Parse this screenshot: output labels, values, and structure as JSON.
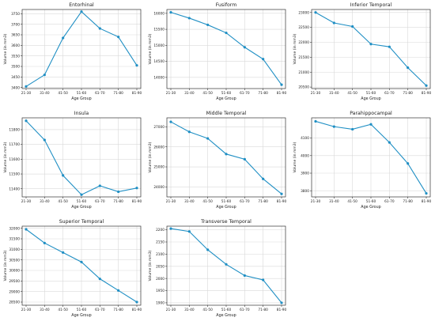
{
  "chart_data": [
    {
      "type": "line",
      "title": "Entorhinal",
      "xlabel": "Age Group",
      "ylabel": "Volume (in mm3)",
      "categories": [
        "21-30",
        "31-40",
        "41-50",
        "51-60",
        "61-70",
        "71-80",
        "81-90"
      ],
      "values": [
        3405,
        3460,
        3635,
        3760,
        3680,
        3640,
        3505
      ],
      "ylim": [
        3395,
        3770
      ],
      "yticks": [
        3400,
        3450,
        3500,
        3550,
        3600,
        3650,
        3700,
        3750
      ],
      "grid": true,
      "color": "#1f8fc4"
    },
    {
      "type": "line",
      "title": "Fusiform",
      "xlabel": "Age Group",
      "ylabel": "Volume (in mm3)",
      "categories": [
        "21-30",
        "31-40",
        "41-50",
        "51-60",
        "61-70",
        "71-80",
        "81-90"
      ],
      "values": [
        16030,
        15850,
        15640,
        15390,
        14940,
        14570,
        13770
      ],
      "ylim": [
        13650,
        16120
      ],
      "yticks": [
        14000,
        14500,
        15000,
        15500,
        16000
      ],
      "grid": true,
      "color": "#1f8fc4"
    },
    {
      "type": "line",
      "title": "Inferior Temporal",
      "xlabel": "Age Group",
      "ylabel": "Volume (in mm3)",
      "categories": [
        "21-30",
        "31-40",
        "41-50",
        "51-60",
        "61-70",
        "71-80",
        "81-90"
      ],
      "values": [
        23000,
        22650,
        22530,
        21940,
        21850,
        21150,
        20550
      ],
      "ylim": [
        20450,
        23100
      ],
      "yticks": [
        20500,
        21000,
        21500,
        22000,
        22500,
        23000
      ],
      "grid": true,
      "color": "#1f8fc4"
    },
    {
      "type": "line",
      "title": "Insula",
      "xlabel": "Age Group",
      "ylabel": "Volume (in mm3)",
      "categories": [
        "21-30",
        "31-40",
        "41-50",
        "51-60",
        "61-70",
        "71-80",
        "81-90"
      ],
      "values": [
        11860,
        11730,
        11490,
        11360,
        11420,
        11380,
        11405
      ],
      "ylim": [
        11345,
        11880
      ],
      "yticks": [
        11400,
        11500,
        11600,
        11700,
        11800
      ],
      "grid": true,
      "color": "#1f8fc4"
    },
    {
      "type": "line",
      "title": "Middle Temporal",
      "xlabel": "Age Group",
      "ylabel": "Volume (in mm3)",
      "categories": [
        "21-30",
        "31-40",
        "41-50",
        "51-60",
        "61-70",
        "71-80",
        "81-90"
      ],
      "values": [
        27250,
        26750,
        26420,
        25640,
        25380,
        24400,
        23650
      ],
      "ylim": [
        23500,
        27450
      ],
      "yticks": [
        24000,
        25000,
        26000,
        27000
      ],
      "grid": true,
      "color": "#1f8fc4"
    },
    {
      "type": "line",
      "title": "Parahippocampal",
      "xlabel": "Age Group",
      "ylabel": "Volume (in mm3)",
      "categories": [
        "21-30",
        "31-40",
        "41-50",
        "51-60",
        "61-70",
        "71-80",
        "81-90"
      ],
      "values": [
        4195,
        4165,
        4150,
        4178,
        4075,
        3955,
        3785
      ],
      "ylim": [
        3765,
        4215
      ],
      "yticks": [
        3800,
        3900,
        4000,
        4100
      ],
      "grid": true,
      "color": "#1f8fc4"
    },
    {
      "type": "line",
      "title": "Superior Temporal",
      "xlabel": "Age Group",
      "ylabel": "Volume (in mm3)",
      "categories": [
        "21-30",
        "31-40",
        "41-50",
        "51-60",
        "61-70",
        "71-80",
        "81-90"
      ],
      "values": [
        31950,
        31300,
        30850,
        30400,
        29600,
        29050,
        28500
      ],
      "ylim": [
        28350,
        32100
      ],
      "yticks": [
        28500,
        29000,
        29500,
        30000,
        30500,
        31000,
        31500,
        32000
      ],
      "grid": true,
      "color": "#1f8fc4"
    },
    {
      "type": "line",
      "title": "Transverse Temporal",
      "xlabel": "Age Group",
      "ylabel": "Volume (in mm3)",
      "categories": [
        "21-30",
        "31-40",
        "41-50",
        "51-60",
        "61-70",
        "71-80",
        "81-90"
      ],
      "values": [
        2205,
        2193,
        2118,
        2058,
        2012,
        1994,
        1900
      ],
      "ylim": [
        1890,
        2215
      ],
      "yticks": [
        1900,
        1950,
        2000,
        2050,
        2100,
        2150,
        2200
      ],
      "grid": true,
      "color": "#1f8fc4"
    }
  ]
}
